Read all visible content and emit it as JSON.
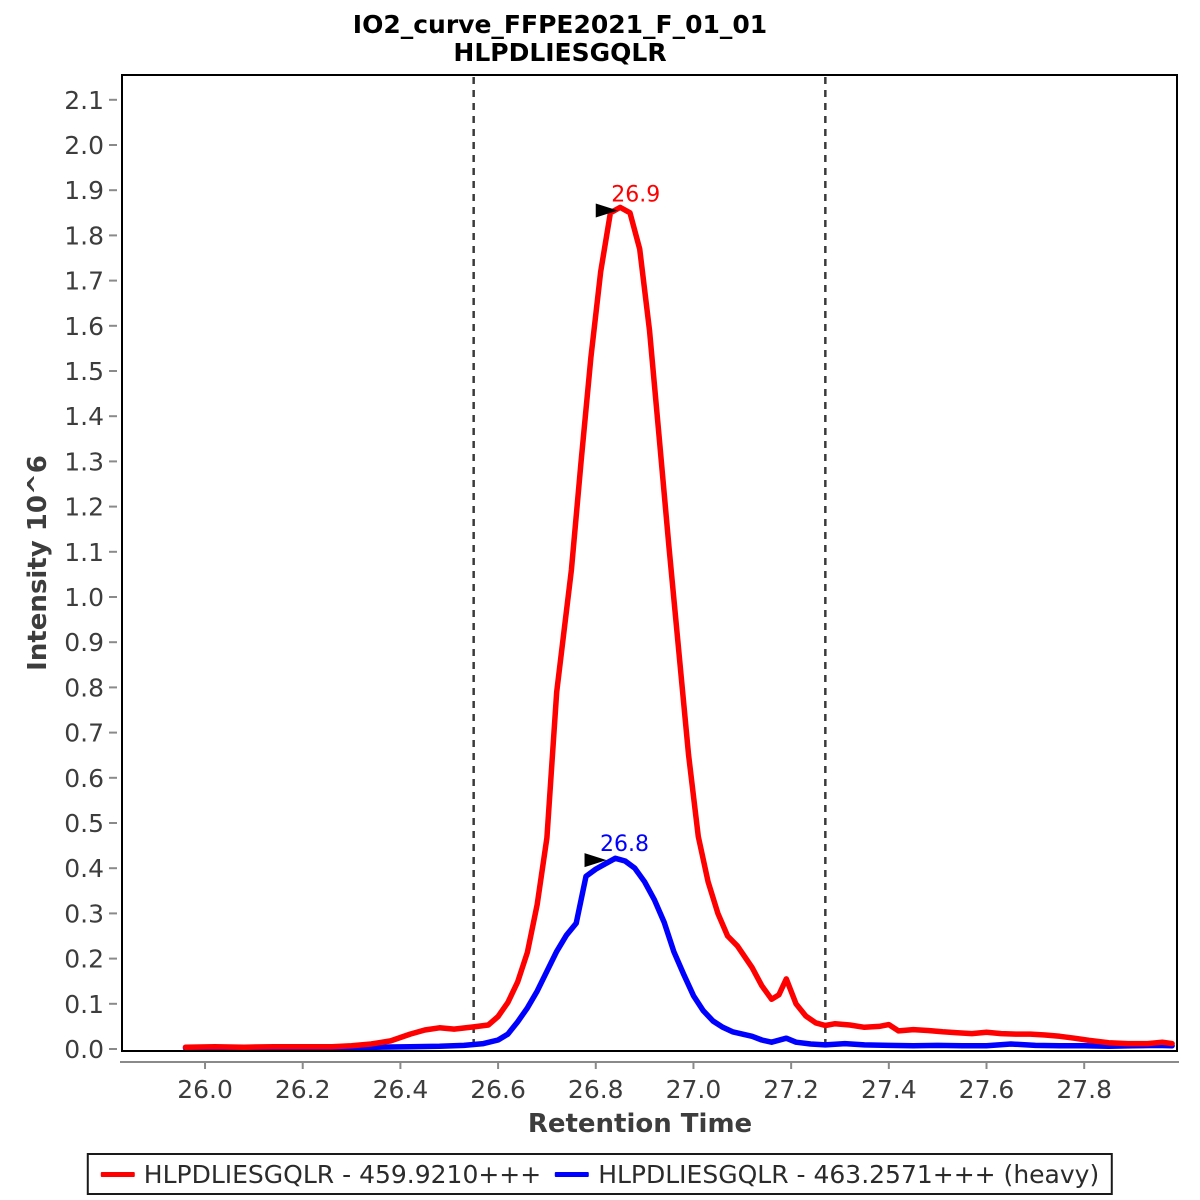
{
  "title": {
    "line1": "IO2_curve_FFPE2021_F_01_01",
    "line2": "HLPDLIESGQLR"
  },
  "axes": {
    "x_label": "Retention Time",
    "y_label": "Intensity 10^6"
  },
  "legend": {
    "items": [
      {
        "label": "HLPDLIESGQLR - 459.9210+++",
        "color": "#ff0000"
      },
      {
        "label": "HLPDLIESGQLR - 463.2571+++ (heavy)",
        "color": "#0000ff"
      }
    ]
  },
  "chart_data": {
    "type": "line",
    "title": "IO2_curve_FFPE2021_F_01_01 / HLPDLIESGQLR",
    "xlabel": "Retention Time",
    "ylabel": "Intensity 10^6",
    "xlim": [
      25.83,
      27.99
    ],
    "ylim": [
      0,
      2.15
    ],
    "x_ticks": [
      26.0,
      26.2,
      26.4,
      26.6,
      26.8,
      27.0,
      27.2,
      27.4,
      27.6,
      27.8
    ],
    "y_ticks": [
      0.0,
      0.1,
      0.2,
      0.3,
      0.4,
      0.5,
      0.6,
      0.7,
      0.8,
      0.9,
      1.0,
      1.1,
      1.2,
      1.3,
      1.4,
      1.5,
      1.6,
      1.7,
      1.8,
      1.9,
      2.0,
      2.1
    ],
    "grid": false,
    "legend_position": "bottom",
    "peak_boundaries": [
      26.55,
      27.27
    ],
    "annotations": [
      {
        "text": "26.9",
        "color": "#ff0000",
        "tip_x": 26.845,
        "tip_y": 1.855
      },
      {
        "text": "26.8",
        "color": "#0000ff",
        "tip_x": 26.822,
        "tip_y": 0.418
      }
    ],
    "series": [
      {
        "name": "HLPDLIESGQLR - 459.9210+++",
        "color": "#ff0000",
        "peak_rt": 26.9,
        "peak_height": 1.86,
        "points": [
          [
            25.96,
            0.004
          ],
          [
            26.02,
            0.005
          ],
          [
            26.08,
            0.004
          ],
          [
            26.14,
            0.005
          ],
          [
            26.2,
            0.005
          ],
          [
            26.26,
            0.005
          ],
          [
            26.3,
            0.007
          ],
          [
            26.34,
            0.011
          ],
          [
            26.38,
            0.018
          ],
          [
            26.42,
            0.033
          ],
          [
            26.45,
            0.042
          ],
          [
            26.48,
            0.047
          ],
          [
            26.51,
            0.044
          ],
          [
            26.55,
            0.049
          ],
          [
            26.58,
            0.053
          ],
          [
            26.6,
            0.072
          ],
          [
            26.62,
            0.103
          ],
          [
            26.64,
            0.148
          ],
          [
            26.66,
            0.214
          ],
          [
            26.68,
            0.32
          ],
          [
            26.7,
            0.467
          ],
          [
            26.72,
            0.79
          ],
          [
            26.75,
            1.06
          ],
          [
            26.77,
            1.3
          ],
          [
            26.79,
            1.53
          ],
          [
            26.81,
            1.72
          ],
          [
            26.83,
            1.85
          ],
          [
            26.85,
            1.862
          ],
          [
            26.87,
            1.85
          ],
          [
            26.89,
            1.77
          ],
          [
            26.91,
            1.59
          ],
          [
            26.93,
            1.35
          ],
          [
            26.95,
            1.11
          ],
          [
            26.97,
            0.88
          ],
          [
            26.99,
            0.65
          ],
          [
            27.01,
            0.47
          ],
          [
            27.03,
            0.37
          ],
          [
            27.05,
            0.3
          ],
          [
            27.07,
            0.25
          ],
          [
            27.09,
            0.228
          ],
          [
            27.12,
            0.18
          ],
          [
            27.14,
            0.14
          ],
          [
            27.16,
            0.11
          ],
          [
            27.175,
            0.12
          ],
          [
            27.19,
            0.155
          ],
          [
            27.21,
            0.1
          ],
          [
            27.23,
            0.073
          ],
          [
            27.25,
            0.058
          ],
          [
            27.27,
            0.052
          ],
          [
            27.29,
            0.056
          ],
          [
            27.32,
            0.053
          ],
          [
            27.35,
            0.048
          ],
          [
            27.38,
            0.05
          ],
          [
            27.4,
            0.054
          ],
          [
            27.42,
            0.04
          ],
          [
            27.45,
            0.043
          ],
          [
            27.48,
            0.041
          ],
          [
            27.51,
            0.038
          ],
          [
            27.54,
            0.036
          ],
          [
            27.57,
            0.034
          ],
          [
            27.6,
            0.037
          ],
          [
            27.63,
            0.034
          ],
          [
            27.66,
            0.033
          ],
          [
            27.69,
            0.033
          ],
          [
            27.72,
            0.031
          ],
          [
            27.75,
            0.028
          ],
          [
            27.78,
            0.024
          ],
          [
            27.81,
            0.019
          ],
          [
            27.85,
            0.014
          ],
          [
            27.89,
            0.012
          ],
          [
            27.93,
            0.012
          ],
          [
            27.96,
            0.015
          ],
          [
            27.98,
            0.012
          ]
        ]
      },
      {
        "name": "HLPDLIESGQLR - 463.2571+++ (heavy)",
        "color": "#0000ff",
        "peak_rt": 26.8,
        "peak_height": 0.42,
        "points": [
          [
            25.96,
            0.002
          ],
          [
            26.05,
            0.002
          ],
          [
            26.12,
            0.003
          ],
          [
            26.2,
            0.003
          ],
          [
            26.28,
            0.003
          ],
          [
            26.35,
            0.004
          ],
          [
            26.42,
            0.005
          ],
          [
            26.48,
            0.006
          ],
          [
            26.53,
            0.008
          ],
          [
            26.57,
            0.012
          ],
          [
            26.6,
            0.02
          ],
          [
            26.62,
            0.033
          ],
          [
            26.64,
            0.06
          ],
          [
            26.66,
            0.091
          ],
          [
            26.68,
            0.128
          ],
          [
            26.7,
            0.172
          ],
          [
            26.72,
            0.216
          ],
          [
            26.74,
            0.252
          ],
          [
            26.76,
            0.278
          ],
          [
            26.78,
            0.382
          ],
          [
            26.8,
            0.398
          ],
          [
            26.82,
            0.41
          ],
          [
            26.84,
            0.422
          ],
          [
            26.86,
            0.416
          ],
          [
            26.88,
            0.4
          ],
          [
            26.9,
            0.37
          ],
          [
            26.92,
            0.33
          ],
          [
            26.94,
            0.28
          ],
          [
            26.96,
            0.215
          ],
          [
            26.98,
            0.165
          ],
          [
            27.0,
            0.118
          ],
          [
            27.02,
            0.085
          ],
          [
            27.04,
            0.062
          ],
          [
            27.06,
            0.048
          ],
          [
            27.08,
            0.038
          ],
          [
            27.1,
            0.033
          ],
          [
            27.12,
            0.028
          ],
          [
            27.14,
            0.02
          ],
          [
            27.16,
            0.015
          ],
          [
            27.19,
            0.024
          ],
          [
            27.21,
            0.015
          ],
          [
            27.24,
            0.011
          ],
          [
            27.27,
            0.009
          ],
          [
            27.31,
            0.012
          ],
          [
            27.35,
            0.009
          ],
          [
            27.4,
            0.008
          ],
          [
            27.45,
            0.007
          ],
          [
            27.5,
            0.008
          ],
          [
            27.55,
            0.007
          ],
          [
            27.6,
            0.007
          ],
          [
            27.65,
            0.011
          ],
          [
            27.7,
            0.008
          ],
          [
            27.75,
            0.007
          ],
          [
            27.8,
            0.007
          ],
          [
            27.85,
            0.006
          ],
          [
            27.9,
            0.007
          ],
          [
            27.95,
            0.008
          ],
          [
            27.98,
            0.007
          ]
        ]
      }
    ]
  }
}
